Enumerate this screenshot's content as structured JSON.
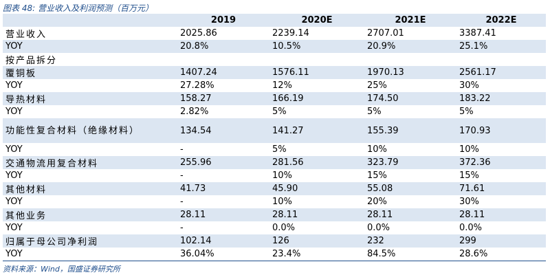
{
  "title": "图表 48: 营业收入及利润预测（百万元）",
  "columns": [
    "",
    "2019",
    "2020E",
    "2021E",
    "2022E"
  ],
  "rows": [
    {
      "label": "营业收入",
      "values": [
        "2025.86",
        "2239.14",
        "2707.01",
        "3387.41"
      ]
    },
    {
      "label": "YOY",
      "values": [
        "20.8%",
        "10.5%",
        "20.9%",
        "25.1%"
      ]
    },
    {
      "label": "按产品拆分",
      "values": [
        "",
        "",
        "",
        ""
      ]
    },
    {
      "label": "覆铜板",
      "values": [
        "1407.24",
        "1576.11",
        "1970.13",
        "2561.17"
      ]
    },
    {
      "label": "YOY",
      "values": [
        "27.28%",
        "12%",
        "25%",
        "30%"
      ]
    },
    {
      "label": "导热材料",
      "values": [
        "158.27",
        "166.19",
        "174.50",
        "183.22"
      ]
    },
    {
      "label": "YOY",
      "values": [
        "2.82%",
        "5%",
        "5%",
        "5%"
      ]
    },
    {
      "label": "功能性复合材料（绝缘材料）",
      "values": [
        "134.54",
        "141.27",
        "155.39",
        "170.93"
      ]
    },
    {
      "label": "YOY",
      "values": [
        "-",
        "5%",
        "10%",
        "10%"
      ]
    },
    {
      "label": "交通物流用复合材料",
      "values": [
        "255.96",
        "281.56",
        "323.79",
        "372.36"
      ]
    },
    {
      "label": "YOY",
      "values": [
        "-",
        "10%",
        "15%",
        "15%"
      ]
    },
    {
      "label": "其他材料",
      "values": [
        "41.73",
        "45.90",
        "55.08",
        "71.61"
      ]
    },
    {
      "label": "YOY",
      "values": [
        "-",
        "10%",
        "20%",
        "30%"
      ]
    },
    {
      "label": "其他业务",
      "values": [
        "28.11",
        "28.11",
        "28.11",
        "28.11"
      ]
    },
    {
      "label": "YOY",
      "values": [
        "-",
        "0.0%",
        "0.0%",
        "0.0%"
      ]
    },
    {
      "label": "归属于母公司净利润",
      "values": [
        "102.14",
        "126",
        "232",
        "299"
      ]
    },
    {
      "label": "YOY",
      "values": [
        "36.04%",
        "23.4%",
        "84.5%",
        "28.6%"
      ]
    }
  ],
  "source": "资料来源：Wind，国盛证券研究所",
  "colors": {
    "accent": "#1f4e8c",
    "band": "#dce6f2"
  }
}
